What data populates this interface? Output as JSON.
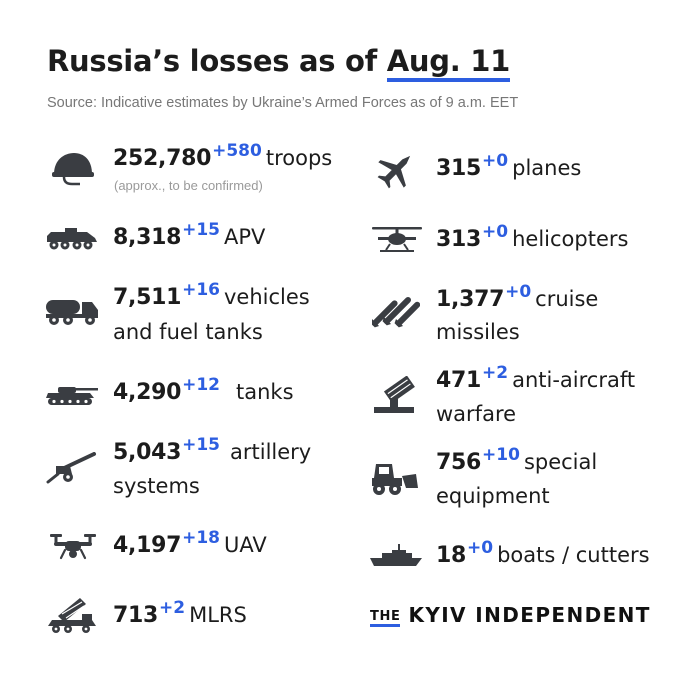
{
  "header": {
    "title_prefix": "Russia’s losses as of ",
    "title_date": "Aug. 11",
    "source": "Source: Indicative estimates by Ukraine’s Armed Forces as of 9 a.m. EET"
  },
  "left": [
    {
      "icon": "helmet-icon",
      "value": "252,780",
      "delta": "+580",
      "label1": "troops",
      "note": "(approx., to be confirmed)"
    },
    {
      "icon": "apv-icon",
      "value": "8,318",
      "delta": "+15",
      "label1": "APV"
    },
    {
      "icon": "fuel-truck-icon",
      "value": "7,511",
      "delta": "+16",
      "label1": "vehicles",
      "label2": "and fuel tanks"
    },
    {
      "icon": "tank-icon",
      "value": "4,290",
      "delta": "+12",
      "label1": "tanks"
    },
    {
      "icon": "artillery-icon",
      "value": "5,043",
      "delta": "+15",
      "label1": "artillery",
      "label2": "systems"
    },
    {
      "icon": "drone-icon",
      "value": "4,197",
      "delta": "+18",
      "label1": "UAV"
    },
    {
      "icon": "mlrs-icon",
      "value": "713",
      "delta": "+2",
      "label1": "MLRS"
    }
  ],
  "right": [
    {
      "icon": "plane-icon",
      "value": "315",
      "delta": "+0",
      "label1": "planes"
    },
    {
      "icon": "helicopter-icon",
      "value": "313",
      "delta": "+0",
      "label1": "helicopters"
    },
    {
      "icon": "missiles-icon",
      "value": "1,377",
      "delta": "+0",
      "label1": "cruise",
      "label2": "missiles"
    },
    {
      "icon": "anti-aircraft-icon",
      "value": "471",
      "delta": "+2",
      "label1": "anti-aircraft",
      "label2": "warfare"
    },
    {
      "icon": "bulldozer-icon",
      "value": "756",
      "delta": "+10",
      "label1": "special",
      "label2": "equipment"
    },
    {
      "icon": "boat-icon",
      "value": "18",
      "delta": "+0",
      "label1": "boats / cutters"
    }
  ],
  "brand": {
    "the": "THE",
    "name": "KYIV INDEPENDENT"
  },
  "colors": {
    "accent": "#2d5ee0",
    "text": "#1c1c1c",
    "icon": "#3a3d42"
  }
}
